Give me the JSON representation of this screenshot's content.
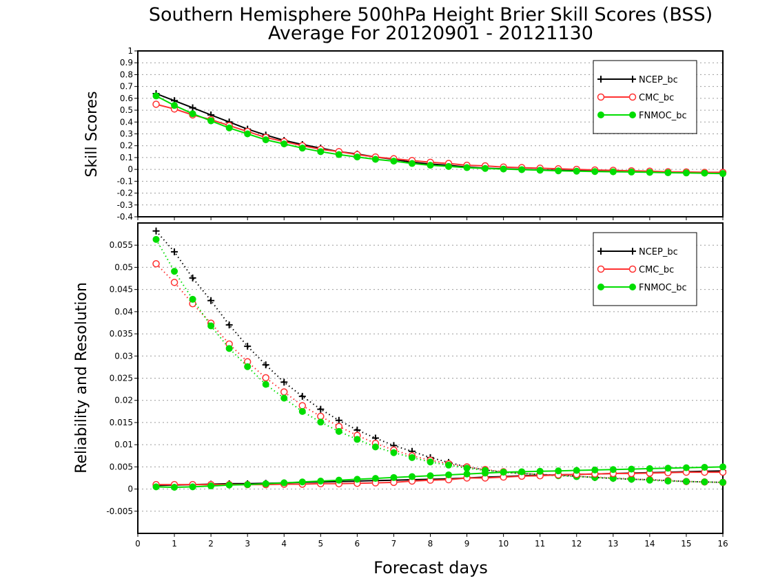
{
  "figure": {
    "title_line1": "Southern Hemisphere 500hPa Height Brier Skill Scores (BSS)",
    "title_line2": "Average For 20120901 - 20121130",
    "xlabel": "Forecast days"
  },
  "colors": {
    "NCEP_bc": "#000000",
    "CMC_bc": "#ff3030",
    "FNMOC_bc": "#00dd00"
  },
  "chart_data": [
    {
      "type": "line",
      "panel": "top",
      "ylabel": "Skill Scores",
      "xlim": [
        0,
        16
      ],
      "ylim": [
        -0.4,
        1.0
      ],
      "yticks": [
        "1",
        "0.9",
        "0.8",
        "0.7",
        "0.6",
        "0.5",
        "0.4",
        "0.3",
        "0.2",
        "0.1",
        "0",
        "-0.1",
        "-0.2",
        "-0.3",
        "-0.4"
      ],
      "xticks": [
        "0",
        "1",
        "2",
        "3",
        "4",
        "5",
        "6",
        "7",
        "8",
        "9",
        "10",
        "11",
        "12",
        "13",
        "14",
        "15",
        "16"
      ],
      "grid": "horizontal dotted",
      "legend_position": "top-right",
      "x": [
        0.5,
        1,
        1.5,
        2,
        2.5,
        3,
        3.5,
        4,
        4.5,
        5,
        5.5,
        6,
        6.5,
        7,
        7.5,
        8,
        8.5,
        9,
        9.5,
        10,
        10.5,
        11,
        11.5,
        12,
        12.5,
        13,
        13.5,
        14,
        14.5,
        15,
        15.5,
        16
      ],
      "series": [
        {
          "name": "NCEP_bc",
          "marker": "plus",
          "style": "solid",
          "values": [
            0.64,
            0.58,
            0.52,
            0.46,
            0.4,
            0.34,
            0.29,
            0.245,
            0.21,
            0.18,
            0.15,
            0.13,
            0.105,
            0.085,
            0.06,
            0.045,
            0.035,
            0.02,
            0.01,
            0.005,
            0.0,
            -0.005,
            -0.008,
            -0.01,
            -0.012,
            -0.015,
            -0.017,
            -0.02,
            -0.022,
            -0.025,
            -0.027,
            -0.03
          ]
        },
        {
          "name": "CMC_bc",
          "marker": "open-circle",
          "style": "solid",
          "values": [
            0.55,
            0.51,
            0.46,
            0.42,
            0.37,
            0.32,
            0.27,
            0.235,
            0.2,
            0.17,
            0.15,
            0.125,
            0.105,
            0.09,
            0.075,
            0.06,
            0.05,
            0.035,
            0.03,
            0.02,
            0.015,
            0.01,
            0.005,
            0.0,
            -0.005,
            -0.008,
            -0.012,
            -0.015,
            -0.02,
            -0.022,
            -0.025,
            -0.025
          ]
        },
        {
          "name": "FNMOC_bc",
          "marker": "filled-circle",
          "style": "solid",
          "values": [
            0.62,
            0.54,
            0.47,
            0.41,
            0.35,
            0.3,
            0.25,
            0.215,
            0.18,
            0.15,
            0.125,
            0.105,
            0.085,
            0.07,
            0.05,
            0.035,
            0.025,
            0.015,
            0.008,
            0.003,
            -0.002,
            -0.007,
            -0.012,
            -0.015,
            -0.018,
            -0.02,
            -0.022,
            -0.025,
            -0.028,
            -0.03,
            -0.032,
            -0.035
          ]
        }
      ]
    },
    {
      "type": "line",
      "panel": "bottom",
      "ylabel": "Reliability and Resolution",
      "xlim": [
        0,
        16
      ],
      "ylim": [
        -0.01,
        0.06
      ],
      "yticks": [
        "0.055",
        "0.05",
        "0.045",
        "0.04",
        "0.035",
        "0.03",
        "0.025",
        "0.02",
        "0.015",
        "0.01",
        "0.005",
        "0",
        "-0.005"
      ],
      "xticks": [
        "0",
        "1",
        "2",
        "3",
        "4",
        "5",
        "6",
        "7",
        "8",
        "9",
        "10",
        "11",
        "12",
        "13",
        "14",
        "15",
        "16"
      ],
      "grid": "horizontal dotted",
      "legend_position": "top-right",
      "x": [
        0.5,
        1,
        1.5,
        2,
        2.5,
        3,
        3.5,
        4,
        4.5,
        5,
        5.5,
        6,
        6.5,
        7,
        7.5,
        8,
        8.5,
        9,
        9.5,
        10,
        10.5,
        11,
        11.5,
        12,
        12.5,
        13,
        13.5,
        14,
        14.5,
        15,
        15.5,
        16
      ],
      "series": [
        {
          "name": "NCEP_bc",
          "group": "resolution",
          "marker": "plus",
          "style": "dotted",
          "values": [
            0.0582,
            0.0535,
            0.0476,
            0.0425,
            0.037,
            0.0322,
            0.028,
            0.0241,
            0.0209,
            0.018,
            0.0155,
            0.0133,
            0.0115,
            0.0098,
            0.0085,
            0.0071,
            0.006,
            0.005,
            0.0043,
            0.0038,
            0.0035,
            0.0033,
            0.0031,
            0.0029,
            0.0026,
            0.0024,
            0.0022,
            0.0021,
            0.0019,
            0.0017,
            0.0016,
            0.0015
          ]
        },
        {
          "name": "CMC_bc",
          "group": "resolution",
          "marker": "open-circle",
          "style": "dotted",
          "values": [
            0.0508,
            0.0466,
            0.0418,
            0.0374,
            0.0327,
            0.0287,
            0.0251,
            0.0219,
            0.0188,
            0.0164,
            0.0141,
            0.0121,
            0.0103,
            0.0088,
            0.0075,
            0.0065,
            0.0057,
            0.005,
            0.0044,
            0.0039,
            0.0036,
            0.0033,
            0.0031,
            0.0029,
            0.0027,
            0.0025,
            0.0023,
            0.0021,
            0.0019,
            0.0017,
            0.0016,
            0.0015
          ]
        },
        {
          "name": "FNMOC_bc",
          "group": "resolution",
          "marker": "filled-circle",
          "style": "dotted",
          "values": [
            0.0563,
            0.0491,
            0.0428,
            0.0368,
            0.0317,
            0.0276,
            0.0236,
            0.0205,
            0.0175,
            0.0151,
            0.013,
            0.0112,
            0.0095,
            0.0082,
            0.0071,
            0.0061,
            0.0054,
            0.0047,
            0.0042,
            0.0038,
            0.0035,
            0.0032,
            0.003,
            0.0028,
            0.0026,
            0.0024,
            0.0022,
            0.002,
            0.0018,
            0.0017,
            0.0016,
            0.0015
          ]
        },
        {
          "name": "NCEP_bc",
          "group": "reliability",
          "marker": "plus",
          "style": "solid",
          "values": [
            0.0008,
            0.0009,
            0.001,
            0.0011,
            0.0012,
            0.0012,
            0.0013,
            0.0014,
            0.0015,
            0.0016,
            0.0017,
            0.0018,
            0.0019,
            0.002,
            0.0021,
            0.0022,
            0.0023,
            0.0025,
            0.0027,
            0.0028,
            0.003,
            0.0031,
            0.0032,
            0.0033,
            0.0034,
            0.0035,
            0.0036,
            0.0037,
            0.0038,
            0.0039,
            0.004,
            0.0041
          ]
        },
        {
          "name": "CMC_bc",
          "group": "reliability",
          "marker": "open-circle",
          "style": "solid",
          "values": [
            0.001,
            0.001,
            0.001,
            0.001,
            0.001,
            0.001,
            0.001,
            0.0011,
            0.0011,
            0.0012,
            0.0012,
            0.0013,
            0.0014,
            0.0015,
            0.0018,
            0.002,
            0.0021,
            0.0025,
            0.0025,
            0.0027,
            0.0029,
            0.003,
            0.0032,
            0.0033,
            0.0034,
            0.0035,
            0.0035,
            0.0036,
            0.0037,
            0.0038,
            0.0038,
            0.0038
          ]
        },
        {
          "name": "FNMOC_bc",
          "group": "reliability",
          "marker": "filled-circle",
          "style": "solid",
          "values": [
            0.0005,
            0.0004,
            0.0005,
            0.0007,
            0.0009,
            0.001,
            0.0012,
            0.0014,
            0.0016,
            0.0018,
            0.002,
            0.0022,
            0.0024,
            0.0026,
            0.0028,
            0.003,
            0.0032,
            0.0034,
            0.0036,
            0.0038,
            0.0039,
            0.004,
            0.0041,
            0.0042,
            0.0043,
            0.0044,
            0.0045,
            0.0046,
            0.0047,
            0.0048,
            0.0049,
            0.005
          ]
        }
      ]
    }
  ]
}
